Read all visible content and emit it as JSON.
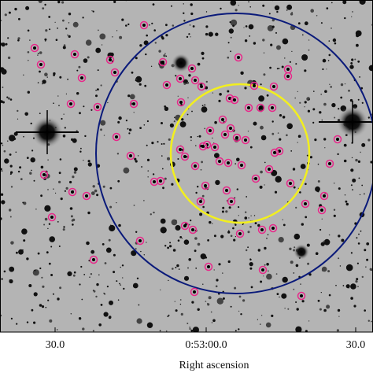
{
  "axis": {
    "label": "Right ascension",
    "ticks": [
      "30.0",
      "0:53:00.0",
      "30.0"
    ]
  }
}
